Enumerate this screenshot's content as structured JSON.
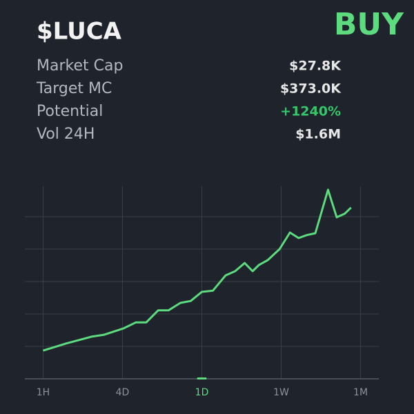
{
  "header": {
    "ticker": "$LUCA",
    "signal": "BUY",
    "signal_color": "#5ddb7f"
  },
  "stats": [
    {
      "label": "Market Cap",
      "value": "$27.8K"
    },
    {
      "label": "Target MC",
      "value": "$373.0K"
    },
    {
      "label": "Potential",
      "value": "+1240%",
      "value_color": "#34c76a"
    },
    {
      "label": "Vol 24H",
      "value": "$1.6M"
    }
  ],
  "timeframes": {
    "options": [
      "1H",
      "4D",
      "1D",
      "1W",
      "1M"
    ],
    "selected": 2
  },
  "chart_data": {
    "type": "line",
    "x": [
      0,
      0.29,
      0.61,
      0.77,
      1.01,
      1.17,
      1.3,
      1.45,
      1.58,
      1.73,
      1.86,
      2.0,
      2.14,
      2.3,
      2.42,
      2.54,
      2.64,
      2.72,
      2.83,
      2.98,
      3.11,
      3.22,
      3.32,
      3.43,
      3.59,
      3.7,
      3.8,
      3.88
    ],
    "values": [
      0.87,
      1.09,
      1.3,
      1.36,
      1.55,
      1.74,
      1.74,
      2.11,
      2.11,
      2.34,
      2.4,
      2.68,
      2.72,
      3.19,
      3.32,
      3.57,
      3.32,
      3.51,
      3.66,
      4.0,
      4.51,
      4.34,
      4.43,
      4.49,
      5.83,
      4.98,
      5.09,
      5.28
    ],
    "color": "#5ddb7f",
    "xlim": [
      -0.23,
      4.23
    ],
    "ylim": [
      0,
      6
    ],
    "xticks": [
      0,
      1,
      2,
      3,
      4
    ],
    "yticks": [
      1,
      2,
      3,
      4,
      5
    ],
    "grid": true
  }
}
